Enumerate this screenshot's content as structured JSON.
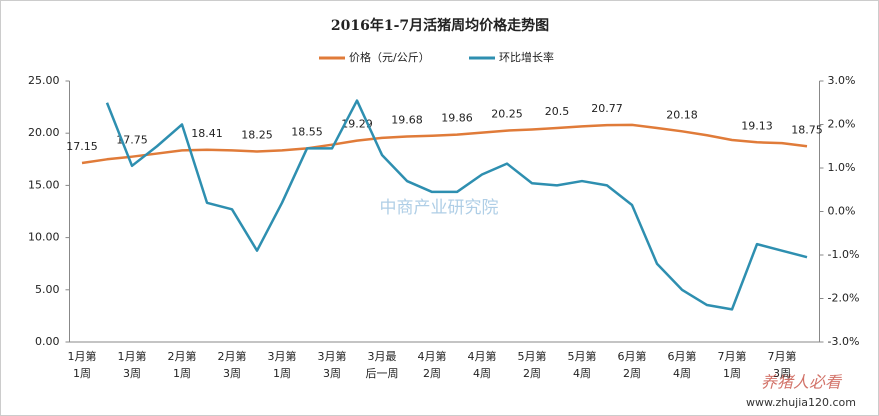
{
  "chart_data": {
    "type": "line",
    "title": "2016年1-7月活猪周均价格走势图",
    "categories": [
      "1月第\n1周",
      null,
      "1月第\n3周",
      null,
      "2月第\n1周",
      null,
      "2月第\n3周",
      null,
      "3月第\n1周",
      null,
      "3月第\n3周",
      null,
      "3月最\n后一周",
      null,
      "4月第\n2周",
      null,
      "4月第\n4周",
      null,
      "5月第\n2周",
      null,
      "5月第\n4周",
      null,
      "6月第\n2周",
      null,
      "6月第\n4周",
      null,
      "7月第\n1周",
      null,
      "7月第\n3周",
      null
    ],
    "series": [
      {
        "name": "价格（元/公斤）",
        "color": "#e07b39",
        "values": [
          17.15,
          17.5,
          17.75,
          18.05,
          18.35,
          18.41,
          18.35,
          18.25,
          18.35,
          18.55,
          18.9,
          19.29,
          19.55,
          19.68,
          19.75,
          19.86,
          20.05,
          20.25,
          20.35,
          20.5,
          20.65,
          20.77,
          20.8,
          20.5,
          20.18,
          19.8,
          19.35,
          19.13,
          19.05,
          18.75
        ],
        "value_labels": [
          "17.15",
          null,
          "17.75",
          null,
          null,
          "18.41",
          null,
          "18.25",
          null,
          "18.55",
          null,
          "19.29",
          null,
          "19.68",
          null,
          "19.86",
          null,
          "20.25",
          null,
          "20.5",
          null,
          "20.77",
          null,
          null,
          "20.18",
          null,
          null,
          "19.13",
          null,
          "18.75"
        ]
      },
      {
        "name": "环比增长率",
        "color": "#2e8fb0",
        "axis": "y2",
        "values": [
          null,
          2.5,
          1.05,
          1.5,
          2.0,
          0.2,
          0.05,
          -0.9,
          0.2,
          1.45,
          1.45,
          2.55,
          1.3,
          0.7,
          0.45,
          0.45,
          0.85,
          1.1,
          0.65,
          0.6,
          0.7,
          0.6,
          0.15,
          -1.2,
          -1.8,
          -2.15,
          -2.25,
          -0.75,
          -0.9,
          -1.05
        ]
      }
    ],
    "ylim": [
      0,
      25
    ],
    "yticks": [
      {
        "value": 0,
        "label": "0.00"
      },
      {
        "value": 5,
        "label": "5.00"
      },
      {
        "value": 10,
        "label": "10.00"
      },
      {
        "value": 15,
        "label": "15.00"
      },
      {
        "value": 20,
        "label": "20.00"
      },
      {
        "value": 25,
        "label": "25.00"
      }
    ],
    "y2lim": [
      -3,
      3
    ],
    "y2ticks": [
      {
        "value": -3,
        "label": "-3.0%"
      },
      {
        "value": -2,
        "label": "-2.0%"
      },
      {
        "value": -1,
        "label": "-1.0%"
      },
      {
        "value": 0,
        "label": "0.0%"
      },
      {
        "value": 1,
        "label": "1.0%"
      },
      {
        "value": 2,
        "label": "2.0%"
      },
      {
        "value": 3,
        "label": "3.0%"
      }
    ],
    "legend": "top",
    "watermarks": [
      "中商产业研究院",
      "养猪人必看",
      "www.zhujia120.com"
    ]
  }
}
